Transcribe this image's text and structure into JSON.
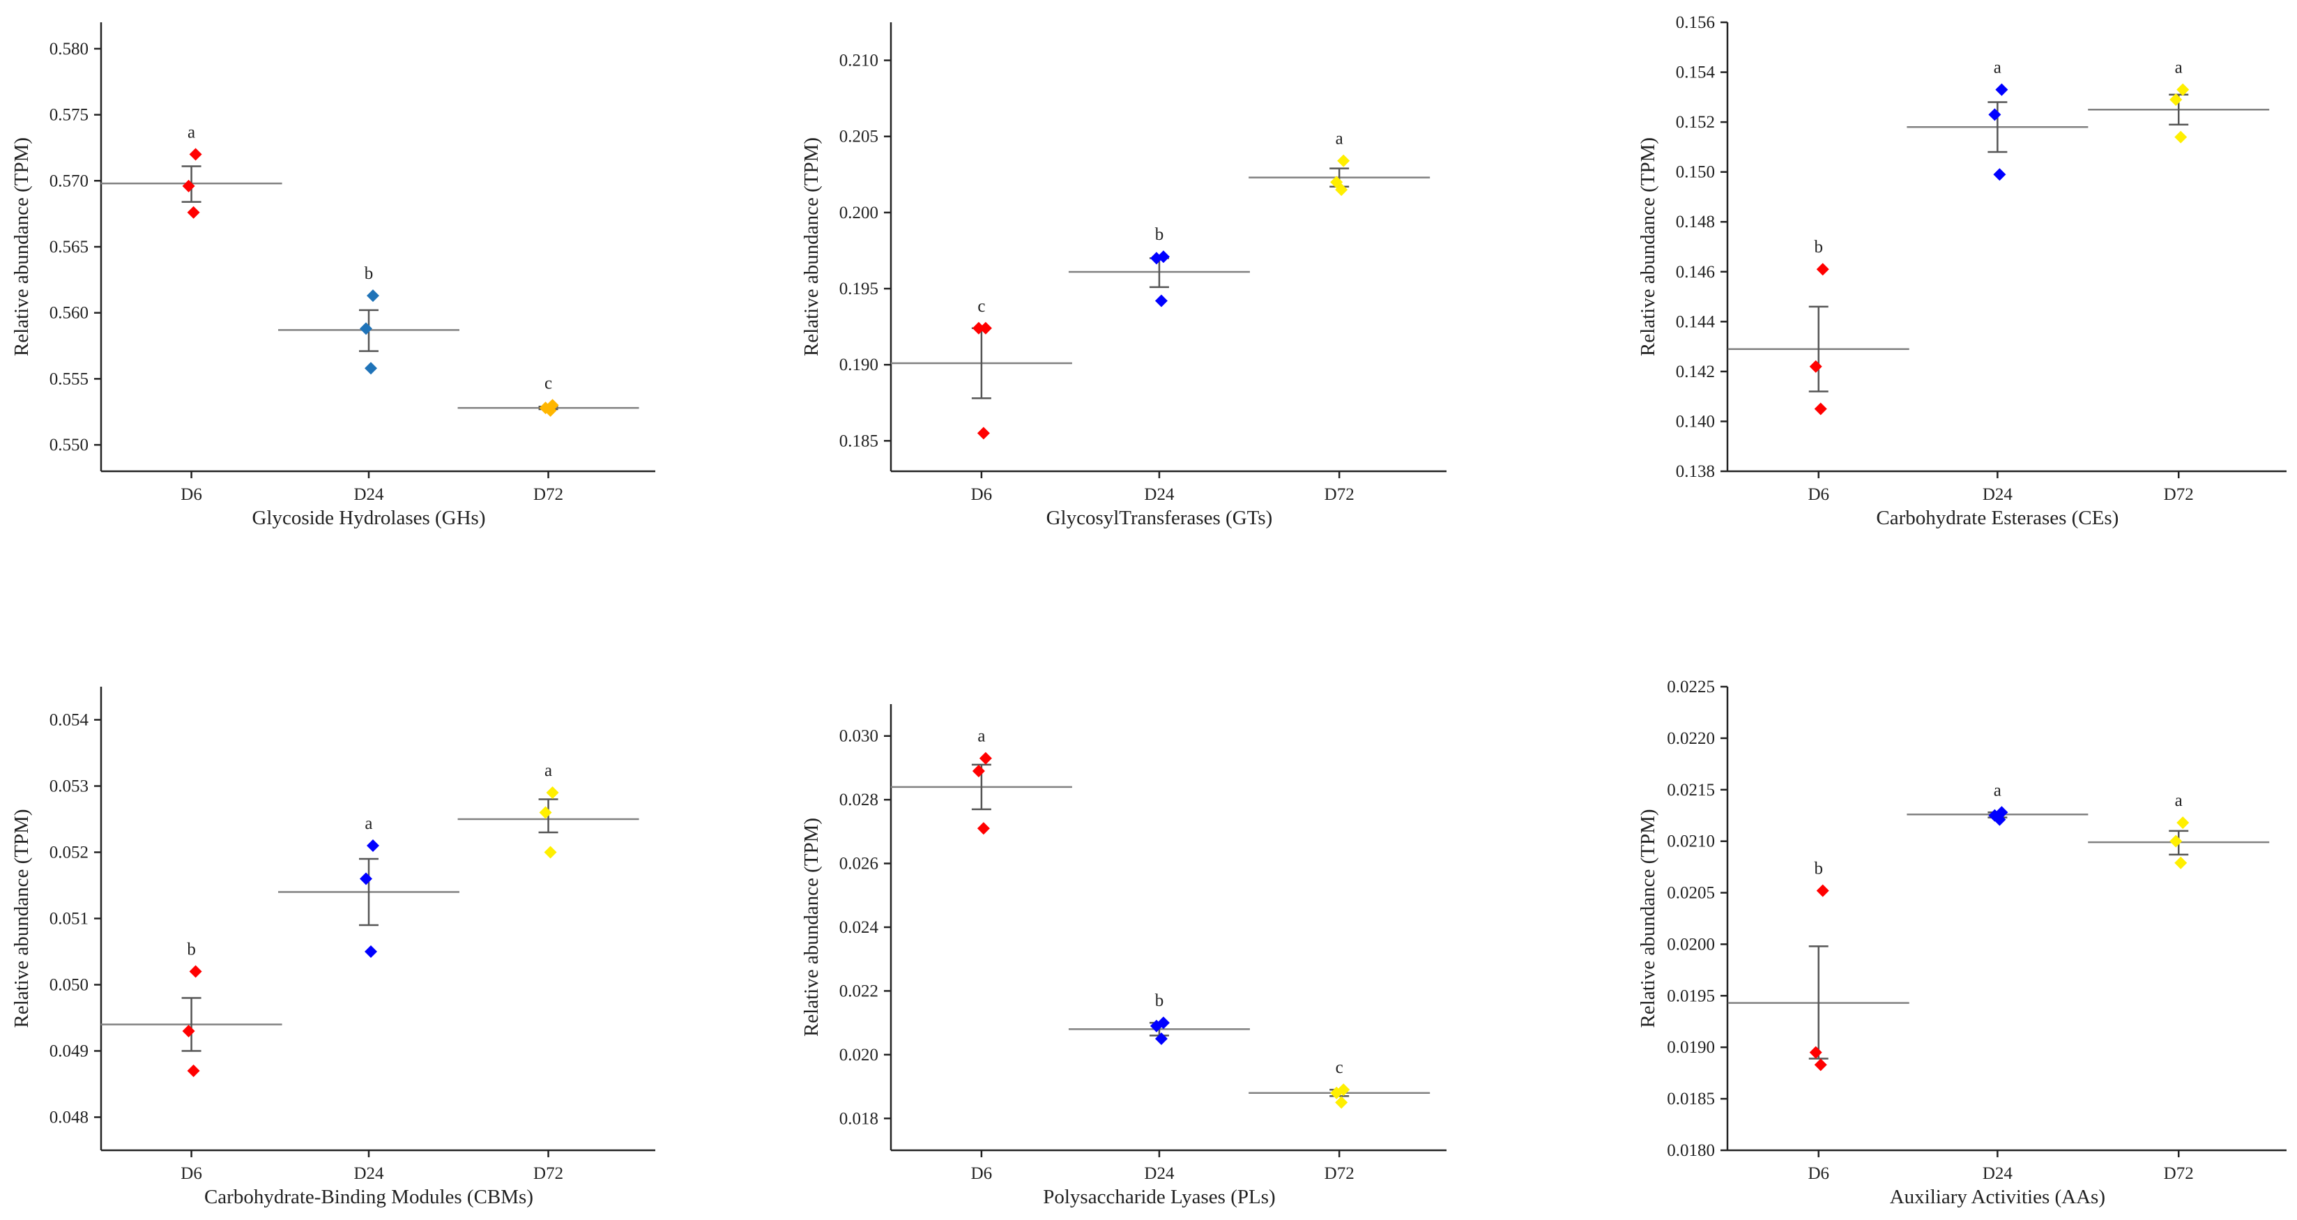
{
  "colors": {
    "D6": "#ff0000",
    "D24_blue": "#0000ff",
    "D24_teal": "#1f73b8",
    "D72_yellow": "#ffef00",
    "D72_orange": "#ffb600",
    "mean_line": "#808080",
    "error_bar": "#555555",
    "axis": "#222222"
  },
  "chart_data": [
    {
      "type": "scatter",
      "title": "",
      "xlabel": "Glycoside Hydrolases (GHs)",
      "ylabel": "Relative abundance (TPM)",
      "categories": [
        "D6",
        "D24",
        "D72"
      ],
      "ylim": [
        0.548,
        0.582
      ],
      "yticks": [
        0.55,
        0.555,
        0.56,
        0.565,
        0.57,
        0.575,
        0.58
      ],
      "ytick_labels": [
        "0.550",
        "0.555",
        "0.560",
        "0.565",
        "0.570",
        "0.575",
        "0.580"
      ],
      "groups": [
        {
          "name": "D6",
          "points": [
            0.572,
            0.5696,
            0.5676
          ],
          "mean": 0.5698,
          "err_low": 0.5684,
          "err_high": 0.5711,
          "letter": "a",
          "color": "#ff0000"
        },
        {
          "name": "D24",
          "points": [
            0.5613,
            0.5588,
            0.5558
          ],
          "mean": 0.5587,
          "err_low": 0.5571,
          "err_high": 0.5602,
          "letter": "b",
          "color": "#1f73b8"
        },
        {
          "name": "D72",
          "points": [
            0.553,
            0.5528,
            0.5526
          ],
          "mean": 0.5528,
          "err_low": 0.5527,
          "err_high": 0.5529,
          "letter": "c",
          "color": "#ffb600"
        }
      ]
    },
    {
      "type": "scatter",
      "title": "",
      "xlabel": "GlycosylTransferases (GTs)",
      "ylabel": "Relative abundance (TPM)",
      "categories": [
        "D6",
        "D24",
        "D72"
      ],
      "ylim": [
        0.183,
        0.2125
      ],
      "yticks": [
        0.185,
        0.19,
        0.195,
        0.2,
        0.205,
        0.21
      ],
      "ytick_labels": [
        "0.185",
        "0.190",
        "0.195",
        "0.200",
        "0.205",
        "0.210"
      ],
      "groups": [
        {
          "name": "D6",
          "points": [
            0.1924,
            0.1924,
            0.1855
          ],
          "mean": 0.1901,
          "err_low": 0.1878,
          "err_high": 0.1924,
          "letter": "c",
          "color": "#ff0000"
        },
        {
          "name": "D24",
          "points": [
            0.1971,
            0.197,
            0.1942
          ],
          "mean": 0.1961,
          "err_low": 0.1951,
          "err_high": 0.197,
          "letter": "b",
          "color": "#0000ff"
        },
        {
          "name": "D72",
          "points": [
            0.2034,
            0.202,
            0.2015
          ],
          "mean": 0.2023,
          "err_low": 0.2017,
          "err_high": 0.2029,
          "letter": "a",
          "color": "#ffef00"
        }
      ]
    },
    {
      "type": "scatter",
      "title": "",
      "xlabel": "Carbohydrate Esterases (CEs)",
      "ylabel": "Relative abundance (TPM)",
      "categories": [
        "D6",
        "D24",
        "D72"
      ],
      "ylim": [
        0.138,
        0.156
      ],
      "yticks": [
        0.138,
        0.14,
        0.142,
        0.144,
        0.146,
        0.148,
        0.15,
        0.152,
        0.154,
        0.156
      ],
      "ytick_labels": [
        "0.138",
        "0.140",
        "0.142",
        "0.144",
        "0.146",
        "0.148",
        "0.150",
        "0.152",
        "0.154",
        "0.156"
      ],
      "groups": [
        {
          "name": "D6",
          "points": [
            0.1461,
            0.1422,
            0.1405
          ],
          "mean": 0.1429,
          "err_low": 0.1412,
          "err_high": 0.1446,
          "letter": "b",
          "color": "#ff0000"
        },
        {
          "name": "D24",
          "points": [
            0.1533,
            0.1523,
            0.1499
          ],
          "mean": 0.1518,
          "err_low": 0.1508,
          "err_high": 0.1528,
          "letter": "a",
          "color": "#0000ff"
        },
        {
          "name": "D72",
          "points": [
            0.1533,
            0.1529,
            0.1514
          ],
          "mean": 0.1525,
          "err_low": 0.1519,
          "err_high": 0.1531,
          "letter": "a",
          "color": "#ffef00"
        }
      ]
    },
    {
      "type": "scatter",
      "title": "",
      "xlabel": "Carbohydrate-Binding Modules (CBMs)",
      "ylabel": "Relative abundance (TPM)",
      "categories": [
        "D6",
        "D24",
        "D72"
      ],
      "ylim": [
        0.0475,
        0.0545
      ],
      "yticks": [
        0.048,
        0.049,
        0.05,
        0.051,
        0.052,
        0.053,
        0.054
      ],
      "ytick_labels": [
        "0.048",
        "0.049",
        "0.050",
        "0.051",
        "0.052",
        "0.053",
        "0.054"
      ],
      "groups": [
        {
          "name": "D6",
          "points": [
            0.0502,
            0.0493,
            0.0487
          ],
          "mean": 0.0494,
          "err_low": 0.049,
          "err_high": 0.0498,
          "letter": "b",
          "color": "#ff0000"
        },
        {
          "name": "D24",
          "points": [
            0.0521,
            0.0516,
            0.0505
          ],
          "mean": 0.0514,
          "err_low": 0.0509,
          "err_high": 0.0519,
          "letter": "a",
          "color": "#0000ff"
        },
        {
          "name": "D72",
          "points": [
            0.0529,
            0.0526,
            0.052
          ],
          "mean": 0.0525,
          "err_low": 0.0523,
          "err_high": 0.0528,
          "letter": "a",
          "color": "#ffef00"
        }
      ]
    },
    {
      "type": "scatter",
      "title": "",
      "xlabel": "Polysaccharide Lyases (PLs)",
      "ylabel": "Relative abundance (TPM)",
      "categories": [
        "D6",
        "D24",
        "D72"
      ],
      "ylim": [
        0.017,
        0.031
      ],
      "yticks": [
        0.018,
        0.02,
        0.022,
        0.024,
        0.026,
        0.028,
        0.03
      ],
      "ytick_labels": [
        "0.018",
        "0.020",
        "0.022",
        "0.024",
        "0.026",
        "0.028",
        "0.030"
      ],
      "groups": [
        {
          "name": "D6",
          "points": [
            0.0293,
            0.0289,
            0.0271
          ],
          "mean": 0.0284,
          "err_low": 0.0277,
          "err_high": 0.0291,
          "letter": "a",
          "color": "#ff0000"
        },
        {
          "name": "D24",
          "points": [
            0.021,
            0.0209,
            0.0205
          ],
          "mean": 0.0208,
          "err_low": 0.0206,
          "err_high": 0.021,
          "letter": "b",
          "color": "#0000ff"
        },
        {
          "name": "D72",
          "points": [
            0.0189,
            0.0188,
            0.0185
          ],
          "mean": 0.0188,
          "err_low": 0.0187,
          "err_high": 0.0189,
          "letter": "c",
          "color": "#ffef00"
        }
      ]
    },
    {
      "type": "scatter",
      "title": "",
      "xlabel": "Auxiliary Activities (AAs)",
      "ylabel": "Relative abundance (TPM)",
      "categories": [
        "D6",
        "D24",
        "D72"
      ],
      "ylim": [
        0.018,
        0.0225
      ],
      "yticks": [
        0.018,
        0.0185,
        0.019,
        0.0195,
        0.02,
        0.0205,
        0.021,
        0.0215,
        0.022,
        0.0225
      ],
      "ytick_labels": [
        "0.0180",
        "0.0185",
        "0.0190",
        "0.0195",
        "0.0200",
        "0.0205",
        "0.0210",
        "0.0215",
        "0.0220",
        "0.0225"
      ],
      "groups": [
        {
          "name": "D6",
          "points": [
            0.02052,
            0.01895,
            0.01883
          ],
          "mean": 0.01943,
          "err_low": 0.01889,
          "err_high": 0.01998,
          "letter": "b",
          "color": "#ff0000"
        },
        {
          "name": "D24",
          "points": [
            0.02128,
            0.02125,
            0.02121
          ],
          "mean": 0.02126,
          "err_low": 0.02123,
          "err_high": 0.02128,
          "letter": "a",
          "color": "#0000ff"
        },
        {
          "name": "D72",
          "points": [
            0.02118,
            0.021,
            0.02079
          ],
          "mean": 0.02099,
          "err_low": 0.02087,
          "err_high": 0.0211,
          "letter": "a",
          "color": "#ffef00"
        }
      ]
    }
  ]
}
